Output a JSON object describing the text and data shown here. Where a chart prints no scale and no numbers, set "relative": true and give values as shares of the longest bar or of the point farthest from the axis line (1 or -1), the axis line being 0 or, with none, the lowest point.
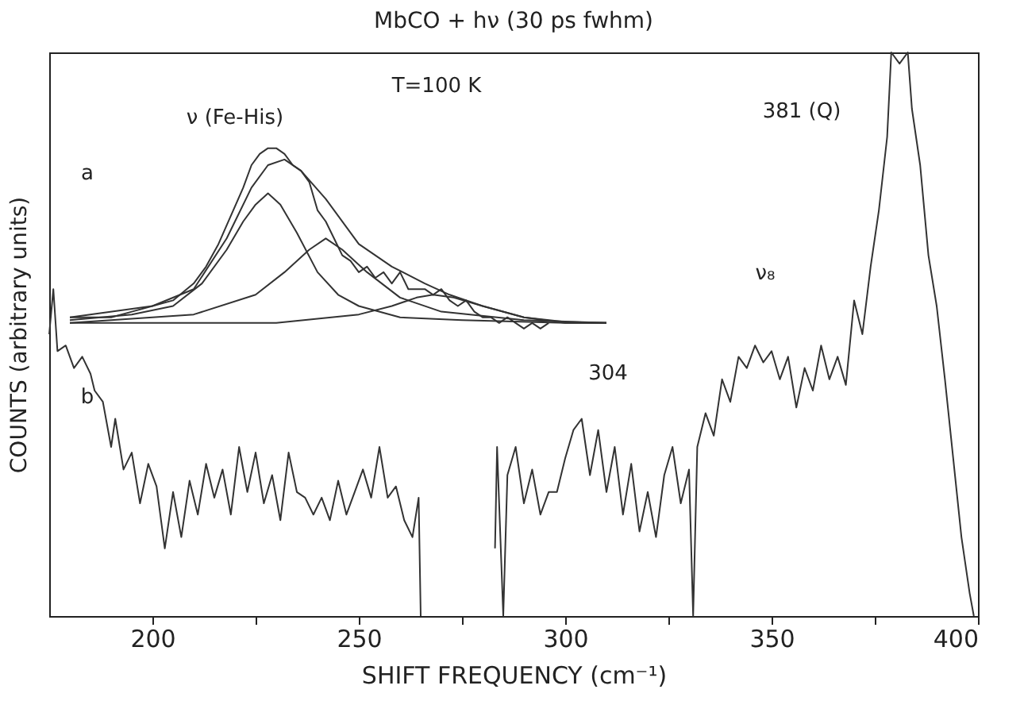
{
  "chart_data": {
    "type": "line",
    "title": "MbCO + hν (30 ps fwhm)",
    "xlabel": "SHIFT FREQUENCY (cm⁻¹)",
    "ylabel": "COUNTS (arbitrary units)",
    "relative": true,
    "xlim": [
      175,
      400
    ],
    "xticks": [
      200,
      {
        "value": 225,
        "label": null
      },
      250,
      {
        "value": 275,
        "label": null
      },
      300,
      {
        "value": 325,
        "label": null
      },
      350,
      {
        "value": 375,
        "label": null
      },
      400
    ],
    "line_style": "solid",
    "marker": "none",
    "annotations": [
      "ν (Fe-His)",
      "T=100 K",
      "a",
      "b",
      "304",
      "ν₈",
      "381 (Q)"
    ],
    "series": [
      {
        "color": "#333333",
        "x": [
          175,
          176,
          177,
          179,
          181,
          183,
          185,
          186,
          188,
          190,
          191,
          193,
          195,
          197,
          199,
          201,
          203,
          205,
          207,
          209,
          211,
          213,
          215,
          217,
          219,
          221,
          223,
          225,
          227,
          229,
          231,
          233,
          235,
          237,
          239,
          241,
          243,
          245,
          247,
          249,
          251,
          253,
          255,
          257,
          259,
          261,
          263,
          264.5,
          265,
          274,
          283,
          283.5,
          284,
          285,
          286,
          288,
          290,
          292,
          294,
          296,
          298,
          300,
          302,
          304,
          306,
          308,
          310,
          312,
          314,
          316,
          318,
          320,
          322,
          324,
          326,
          328,
          330,
          331,
          332,
          334,
          336,
          338,
          340,
          342,
          344,
          346,
          348,
          350,
          352,
          354,
          356,
          358,
          360,
          362,
          364,
          366,
          368,
          370,
          372,
          374,
          376,
          378,
          379,
          381,
          383,
          384,
          386,
          388,
          390,
          392,
          394,
          396,
          398,
          399
        ],
        "values": [
          0.5,
          0.58,
          0.47,
          0.48,
          0.44,
          0.46,
          0.43,
          0.4,
          0.38,
          0.3,
          0.35,
          0.26,
          0.29,
          0.2,
          0.27,
          0.23,
          0.12,
          0.22,
          0.14,
          0.24,
          0.18,
          0.27,
          0.21,
          0.26,
          0.18,
          0.3,
          0.22,
          0.29,
          0.2,
          0.25,
          0.17,
          0.29,
          0.22,
          0.21,
          0.18,
          0.21,
          0.17,
          0.24,
          0.18,
          0.22,
          0.26,
          0.21,
          0.3,
          0.21,
          0.23,
          0.17,
          0.14,
          0.21,
          0,
          null,
          0.12,
          0.3,
          0.2,
          0,
          0.25,
          0.3,
          0.2,
          0.26,
          0.18,
          0.22,
          0.22,
          0.28,
          0.33,
          0.35,
          0.25,
          0.33,
          0.22,
          0.3,
          0.18,
          0.27,
          0.15,
          0.22,
          0.14,
          0.25,
          0.3,
          0.2,
          0.26,
          0,
          0.3,
          0.36,
          0.32,
          0.42,
          0.38,
          0.46,
          0.44,
          0.48,
          0.45,
          0.47,
          0.42,
          0.46,
          0.37,
          0.44,
          0.4,
          0.48,
          0.42,
          0.46,
          0.41,
          0.56,
          0.5,
          0.62,
          0.72,
          0.85,
          1,
          0.98,
          1,
          0.9,
          0.8,
          0.64,
          0.55,
          0.42,
          0.28,
          0.14,
          0.04,
          0
        ]
      },
      {
        "color": "#333333",
        "x": [
          180,
          185,
          190,
          195,
          200,
          205,
          210,
          213,
          216,
          219,
          222,
          224,
          226,
          228,
          230,
          232,
          234,
          236,
          238,
          240,
          242,
          244,
          246,
          248,
          250,
          252,
          254,
          256,
          258,
          260,
          262,
          264,
          266,
          268,
          270,
          272,
          274,
          276,
          278,
          280,
          282,
          284,
          286,
          288,
          290,
          292,
          294,
          296
        ],
        "values": [
          0.53,
          0.53,
          0.53,
          0.54,
          0.55,
          0.56,
          0.59,
          0.62,
          0.66,
          0.71,
          0.76,
          0.8,
          0.82,
          0.83,
          0.83,
          0.82,
          0.8,
          0.79,
          0.77,
          0.72,
          0.7,
          0.67,
          0.64,
          0.63,
          0.61,
          0.62,
          0.6,
          0.61,
          0.59,
          0.61,
          0.58,
          0.58,
          0.58,
          0.57,
          0.58,
          0.56,
          0.55,
          0.56,
          0.54,
          0.53,
          0.53,
          0.52,
          0.53,
          0.52,
          0.51,
          0.52,
          0.51,
          0.52
        ]
      },
      {
        "color": "#333333",
        "x": [
          180,
          200,
          210,
          218,
          224,
          228,
          232,
          236,
          242,
          250,
          258,
          266,
          272,
          280,
          290,
          300,
          310
        ],
        "values": [
          0.53,
          0.55,
          0.58,
          0.67,
          0.76,
          0.8,
          0.81,
          0.79,
          0.74,
          0.66,
          0.62,
          0.59,
          0.57,
          0.55,
          0.53,
          0.52,
          0.52
        ]
      },
      {
        "color": "#333333",
        "x": [
          180,
          195,
          205,
          212,
          218,
          222,
          225,
          228,
          231,
          235,
          240,
          245,
          250,
          260,
          275,
          300,
          310
        ],
        "values": [
          0.525,
          0.535,
          0.55,
          0.59,
          0.65,
          0.7,
          0.73,
          0.75,
          0.73,
          0.68,
          0.61,
          0.57,
          0.55,
          0.53,
          0.525,
          0.52,
          0.52
        ]
      },
      {
        "color": "#333333",
        "x": [
          180,
          210,
          225,
          232,
          238,
          242,
          246,
          252,
          260,
          270,
          290,
          310
        ],
        "values": [
          0.52,
          0.535,
          0.57,
          0.61,
          0.65,
          0.67,
          0.65,
          0.61,
          0.565,
          0.54,
          0.525,
          0.52
        ]
      },
      {
        "color": "#333333",
        "x": [
          180,
          230,
          250,
          258,
          264,
          268,
          273,
          280,
          290,
          300,
          310
        ],
        "values": [
          0.52,
          0.52,
          0.535,
          0.55,
          0.565,
          0.57,
          0.565,
          0.55,
          0.53,
          0.522,
          0.52
        ]
      }
    ]
  }
}
